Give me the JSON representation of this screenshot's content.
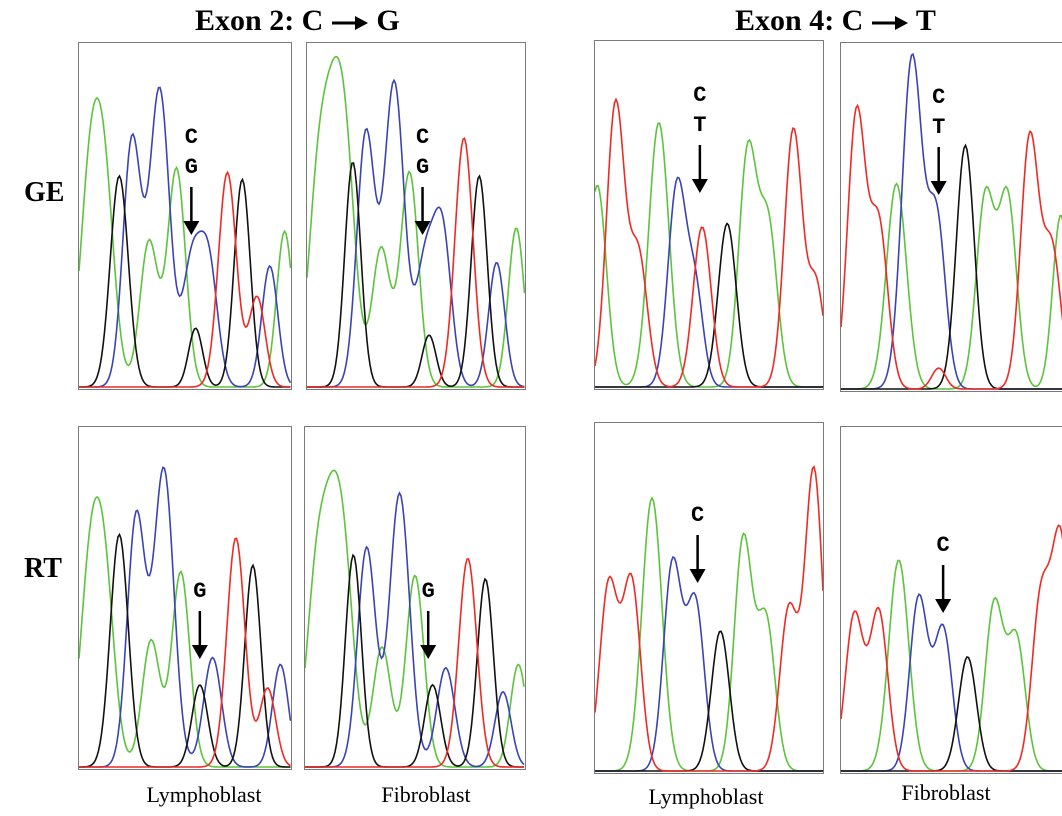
{
  "titles": {
    "exon2": {
      "prefix": "Exon 2: C",
      "suffix": "G"
    },
    "exon4": {
      "prefix": "Exon 4: C",
      "suffix": "T"
    }
  },
  "row_labels": {
    "ge": "GE",
    "rt": "RT"
  },
  "column_labels": [
    "Lymphoblast",
    "Fibroblast",
    "Lymphoblast",
    "Fibroblast"
  ],
  "trace_colors": {
    "A": "#5cc33c",
    "C": "#3a43b4",
    "G": "#111111",
    "T": "#ee2a24"
  },
  "panels": [
    {
      "id": "ge-e2-lympho",
      "letters": [
        "C",
        "G"
      ]
    },
    {
      "id": "ge-e2-fibro",
      "letters": [
        "C",
        "G"
      ]
    },
    {
      "id": "ge-e4-lympho",
      "letters": [
        "C",
        "T"
      ]
    },
    {
      "id": "ge-e4-fibro",
      "letters": [
        "C",
        "T"
      ]
    },
    {
      "id": "rt-e2-lympho",
      "letters": [
        "G"
      ]
    },
    {
      "id": "rt-e2-fibro",
      "letters": [
        "G"
      ]
    },
    {
      "id": "rt-e4-lympho",
      "letters": [
        "C"
      ]
    },
    {
      "id": "rt-e4-fibro",
      "letters": [
        "C"
      ]
    }
  ]
}
